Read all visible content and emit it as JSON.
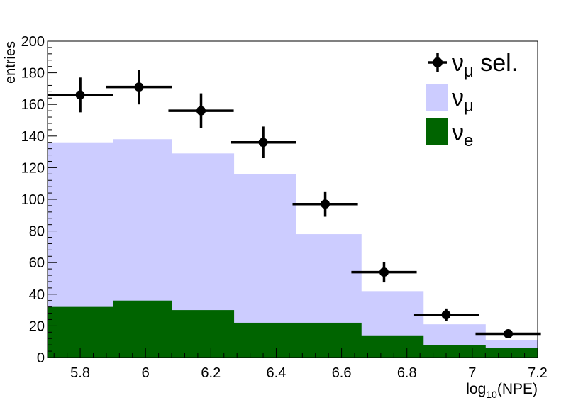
{
  "chart_data": {
    "type": "bar",
    "title": "",
    "xlabel": "log",
    "xlabel_sub": "10",
    "xlabel_tail": "(NPE)",
    "ylabel": "entries",
    "xlim": [
      5.7,
      7.2
    ],
    "ylim": [
      0,
      200
    ],
    "x_ticks": [
      "5.8",
      "6",
      "6.2",
      "6.4",
      "6.6",
      "6.8",
      "7",
      "7.2"
    ],
    "y_ticks": [
      "0",
      "20",
      "40",
      "60",
      "80",
      "100",
      "120",
      "140",
      "160",
      "180",
      "200"
    ],
    "bin_edges": [
      5.7,
      5.9,
      6.08,
      6.27,
      6.46,
      6.66,
      6.85,
      7.04,
      7.2
    ],
    "series": [
      {
        "name": "ν_μ",
        "legend_symbol": "ν",
        "legend_sub": "μ",
        "kind": "stacked-hist",
        "color": "#ccccff",
        "values": [
          136,
          138,
          129,
          116,
          78,
          42,
          21,
          11
        ]
      },
      {
        "name": "ν_e",
        "legend_symbol": "ν",
        "legend_sub": "e",
        "kind": "hist",
        "color": "#006400",
        "values": [
          32,
          36,
          30,
          22,
          22,
          14,
          8,
          6
        ]
      },
      {
        "name": "ν_μ sel.",
        "legend_symbol": "ν",
        "legend_sub": "μ",
        "legend_tail": " sel.",
        "kind": "points",
        "color": "#000000",
        "points": [
          {
            "x": 5.8,
            "y": 166,
            "xerr": 0.1,
            "yerr": 11
          },
          {
            "x": 5.98,
            "y": 171,
            "xerr": 0.1,
            "yerr": 11
          },
          {
            "x": 6.17,
            "y": 156,
            "xerr": 0.1,
            "yerr": 11
          },
          {
            "x": 6.36,
            "y": 136,
            "xerr": 0.1,
            "yerr": 10
          },
          {
            "x": 6.55,
            "y": 97,
            "xerr": 0.1,
            "yerr": 8
          },
          {
            "x": 6.73,
            "y": 54,
            "xerr": 0.1,
            "yerr": 6.5
          },
          {
            "x": 6.92,
            "y": 27,
            "xerr": 0.1,
            "yerr": 4
          },
          {
            "x": 7.11,
            "y": 15,
            "xerr": 0.1,
            "yerr": 2.5
          }
        ]
      }
    ],
    "legend_order": [
      2,
      0,
      1
    ],
    "legend_position": "top-right",
    "grid": false
  }
}
